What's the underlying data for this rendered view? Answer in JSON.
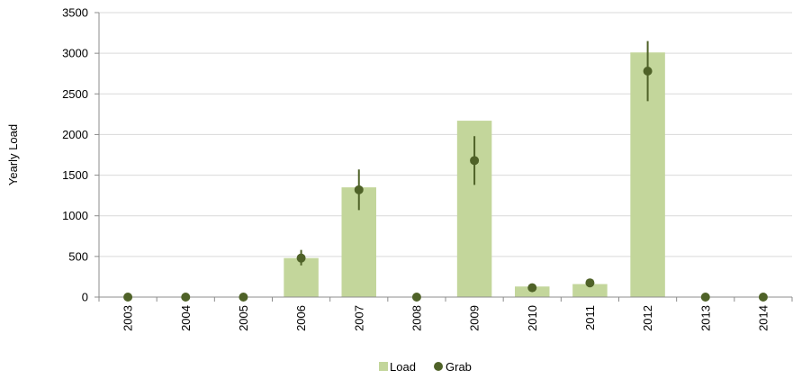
{
  "chart_data": {
    "type": "bar",
    "title": "",
    "xlabel": "",
    "ylabel": "Yearly Load",
    "ylim": [
      0,
      3500
    ],
    "yticks": [
      0,
      500,
      1000,
      1500,
      2000,
      2500,
      3000,
      3500
    ],
    "grid": true,
    "legend_position": "bottom",
    "categories": [
      "2003",
      "2004",
      "2005",
      "2006",
      "2007",
      "2008",
      "2009",
      "2010",
      "2011",
      "2012",
      "2013",
      "2014"
    ],
    "series": [
      {
        "name": "Load",
        "type": "bar",
        "color": "#c3d69b",
        "values": [
          0,
          0,
          0,
          480,
          1350,
          0,
          2170,
          130,
          160,
          3010,
          0,
          0
        ]
      },
      {
        "name": "Grab",
        "type": "scatter",
        "color": "#4f6228",
        "values": [
          0,
          0,
          0,
          480,
          1320,
          0,
          1680,
          115,
          175,
          2780,
          0,
          0
        ],
        "error_low": [
          null,
          null,
          null,
          390,
          1070,
          null,
          1380,
          null,
          null,
          2410,
          null,
          null
        ],
        "error_high": [
          null,
          null,
          null,
          580,
          1570,
          null,
          1980,
          null,
          null,
          3150,
          null,
          null
        ]
      }
    ]
  }
}
